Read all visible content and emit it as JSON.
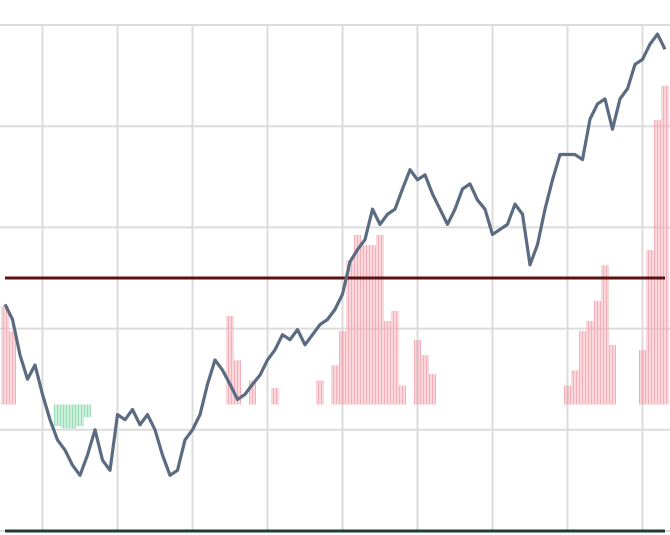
{
  "chart_data": {
    "type": "line",
    "x": [
      0,
      1,
      2,
      3,
      4,
      5,
      6,
      7,
      8,
      9,
      10,
      11,
      12,
      13,
      14,
      15,
      16,
      17,
      18,
      19,
      20,
      21,
      22,
      23,
      24,
      25,
      26,
      27,
      28,
      29,
      30,
      31,
      32,
      33,
      34,
      35,
      36,
      37,
      38,
      39,
      40,
      41,
      42,
      43,
      44,
      45,
      46,
      47,
      48,
      49,
      50,
      51,
      52,
      53,
      54,
      55,
      56,
      57,
      58,
      59,
      60,
      61,
      62,
      63,
      64,
      65,
      66,
      67,
      68,
      69,
      70,
      71,
      72,
      73,
      74,
      75,
      76,
      77,
      78,
      79,
      80,
      81,
      82,
      83,
      84,
      85,
      86,
      87,
      88
    ],
    "xlim": [
      0,
      88
    ],
    "xticks": [
      5,
      15,
      25,
      35,
      45,
      55,
      65,
      75,
      85
    ],
    "ylim": [
      0,
      5
    ],
    "yticks": [
      0,
      1,
      2,
      3,
      4,
      5
    ],
    "y2lim": [
      -1,
      3
    ],
    "grid": true,
    "series": [
      {
        "color": "#5b6b82",
        "values": [
          2.24,
          2.09,
          1.74,
          1.5,
          1.64,
          1.35,
          1.1,
          0.9,
          0.8,
          0.65,
          0.55,
          0.75,
          1.0,
          0.7,
          0.6,
          1.15,
          1.1,
          1.2,
          1.05,
          1.15,
          1.0,
          0.75,
          0.55,
          0.6,
          0.9,
          1.0,
          1.15,
          1.45,
          1.69,
          1.59,
          1.45,
          1.3,
          1.35,
          1.45,
          1.54,
          1.69,
          1.79,
          1.94,
          1.89,
          1.99,
          1.84,
          1.94,
          2.04,
          2.09,
          2.19,
          2.34,
          2.66,
          2.78,
          2.88,
          3.18,
          3.03,
          3.13,
          3.18,
          3.38,
          3.57,
          3.47,
          3.52,
          3.33,
          3.18,
          3.03,
          3.18,
          3.38,
          3.43,
          3.27,
          3.18,
          2.93,
          2.98,
          3.03,
          3.23,
          3.13,
          2.63,
          2.83,
          3.18,
          3.47,
          3.72,
          3.72,
          3.72,
          3.67,
          4.07,
          4.22,
          4.27,
          3.97,
          4.27,
          4.37,
          4.61,
          4.66,
          4.81,
          4.91,
          4.76
        ]
      },
      {
        "type": "bar",
        "axis": "y2",
        "color": "#f2a7b3",
        "down_color": "#8fdcb3",
        "values": [
          0.78,
          0.58,
          null,
          null,
          null,
          null,
          null,
          -0.17,
          -0.19,
          -0.19,
          -0.17,
          -0.1,
          null,
          null,
          null,
          null,
          null,
          null,
          null,
          null,
          null,
          null,
          null,
          null,
          null,
          null,
          null,
          null,
          null,
          null,
          0.7,
          0.35,
          null,
          0.19,
          null,
          null,
          0.13,
          null,
          null,
          null,
          null,
          null,
          0.19,
          null,
          0.31,
          0.58,
          1.14,
          1.34,
          1.26,
          1.26,
          1.34,
          0.66,
          0.74,
          0.15,
          null,
          0.51,
          0.39,
          0.24,
          null,
          null,
          null,
          null,
          null,
          null,
          null,
          null,
          null,
          null,
          null,
          null,
          null,
          null,
          null,
          null,
          null,
          0.15,
          0.27,
          0.58,
          0.66,
          0.82,
          1.1,
          0.47,
          null,
          null,
          null,
          0.43,
          1.22,
          2.25,
          2.52
        ]
      }
    ],
    "hlines": [
      {
        "value": 2.5,
        "color": "#5a1212"
      },
      {
        "value": 0,
        "color": "#1f3b2f"
      }
    ]
  }
}
